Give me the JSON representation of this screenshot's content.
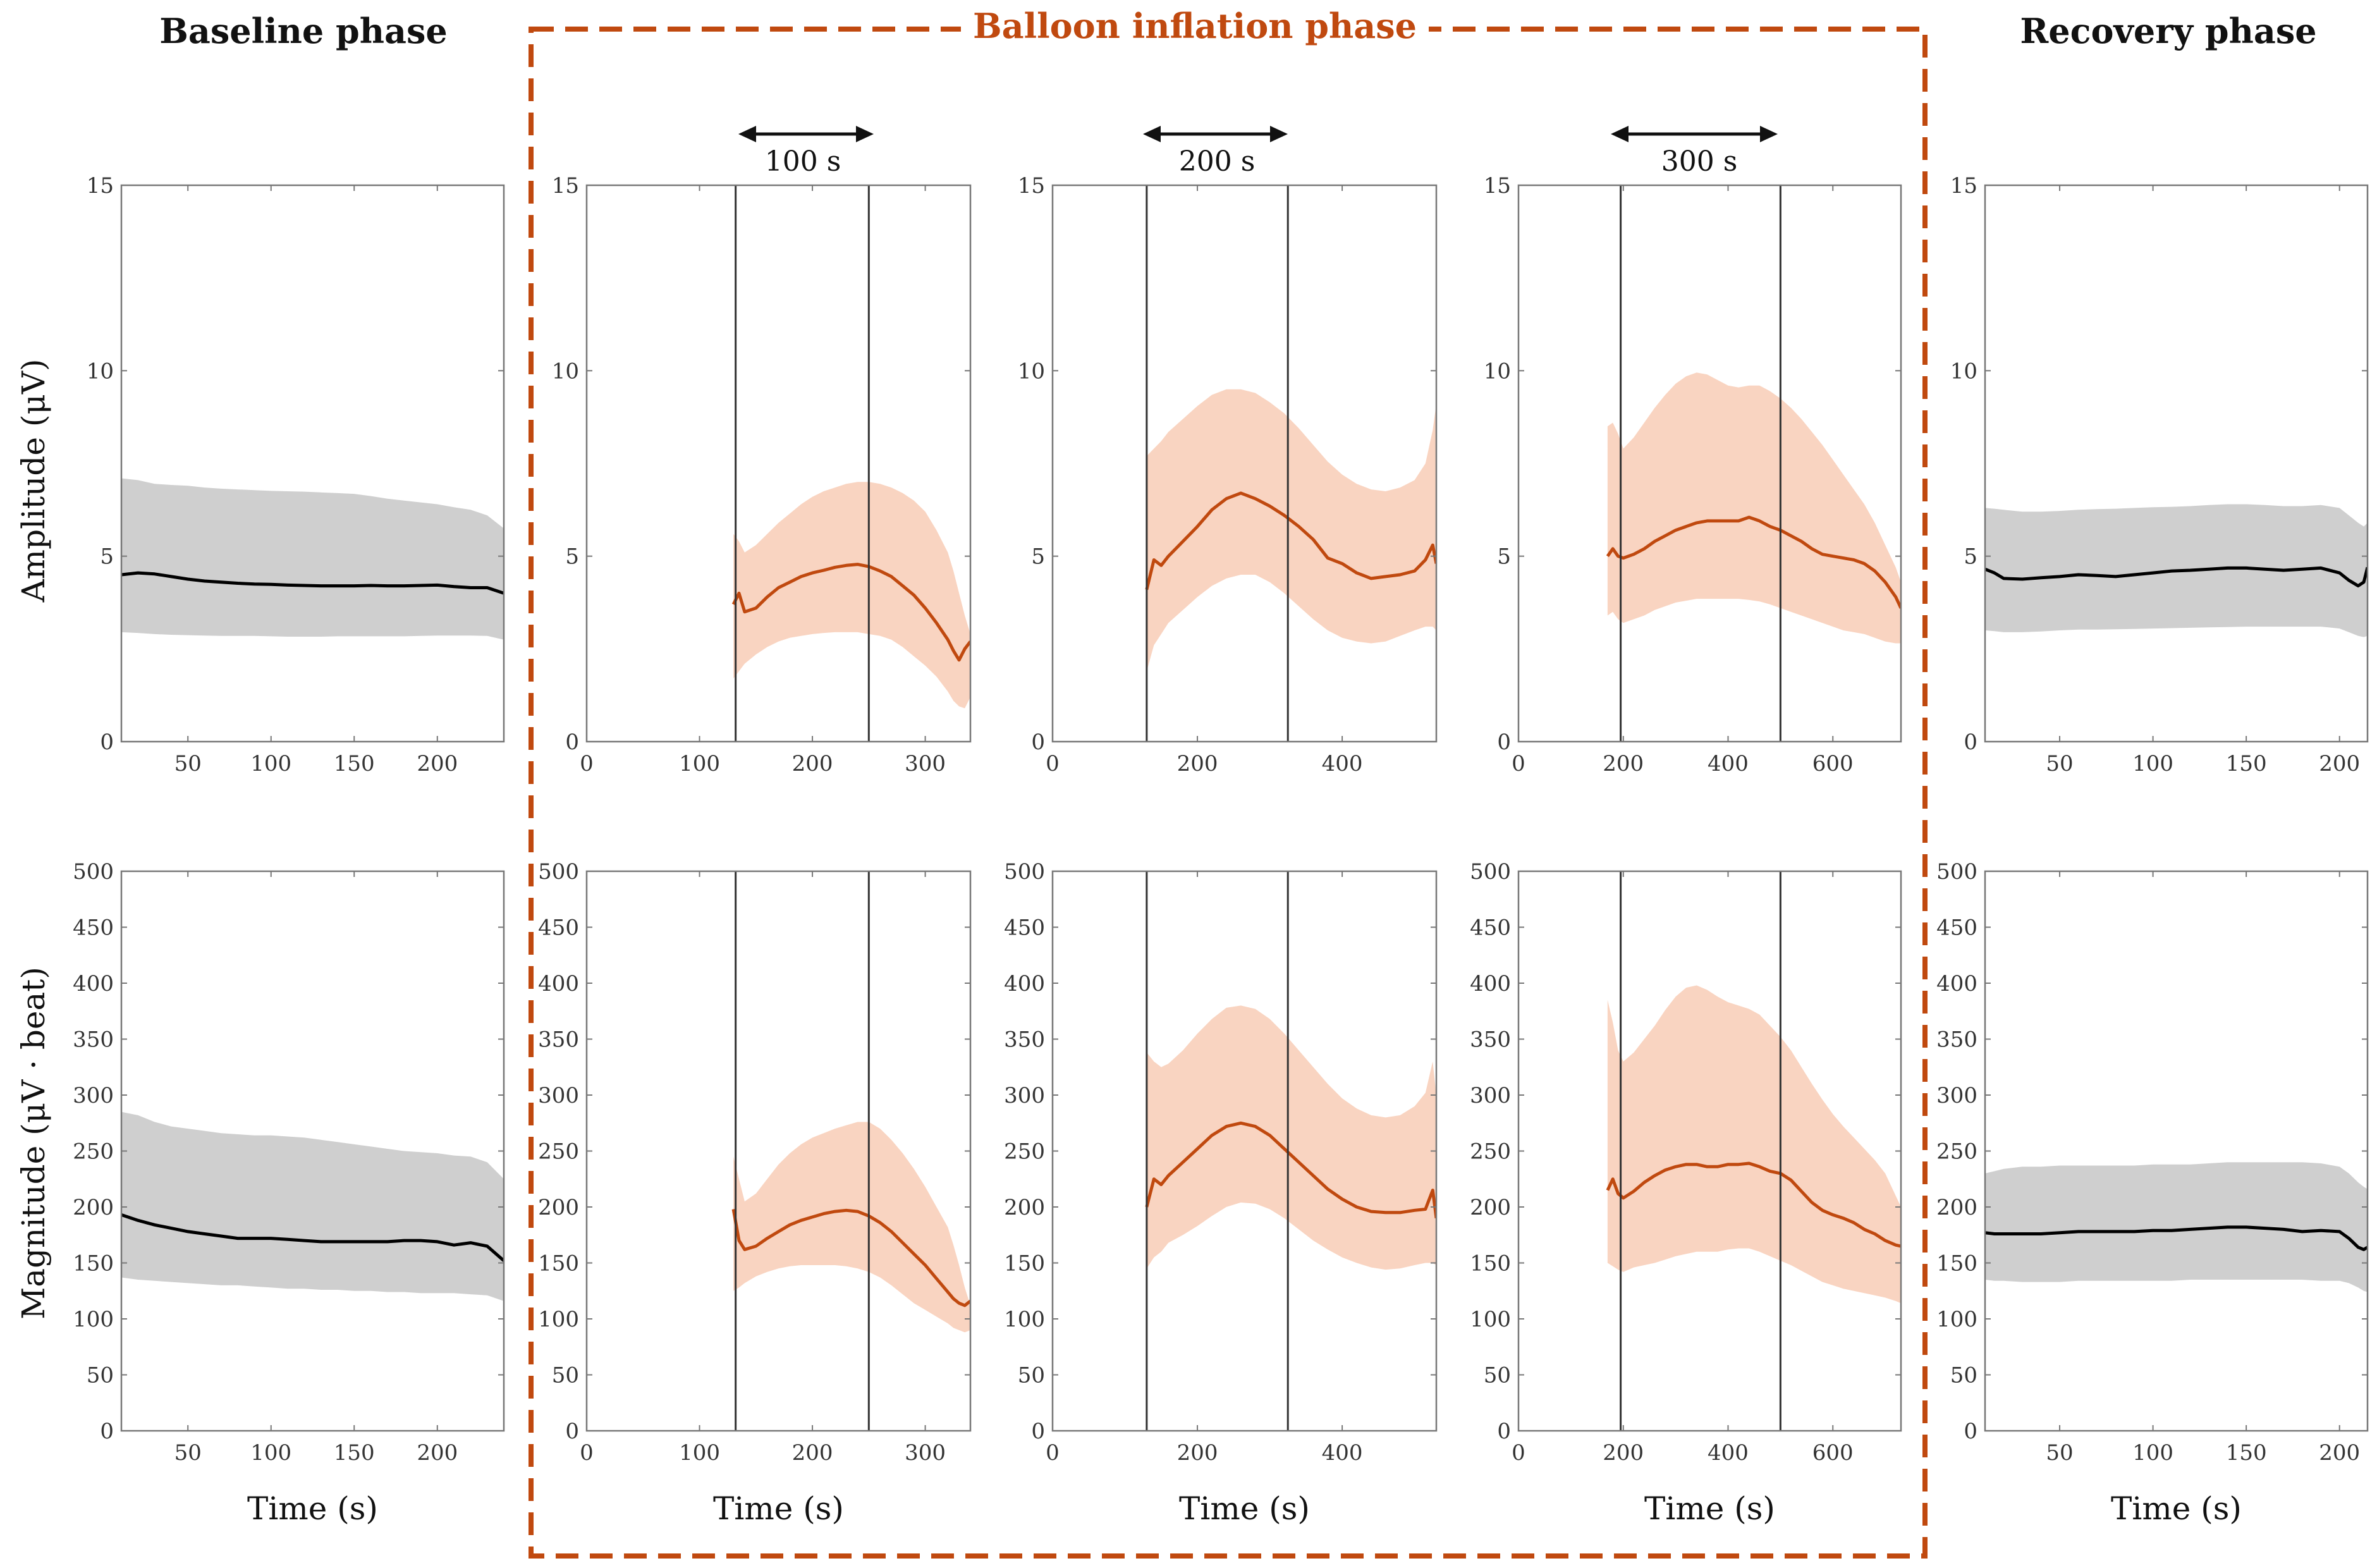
{
  "colors": {
    "accent": "#C0490F",
    "band_orange": "#F9D4C1",
    "band_gray": "#CFCFCF",
    "line_black": "#000000",
    "axis": "#777777",
    "marker": "#333333"
  },
  "titles": {
    "baseline": "Baseline phase",
    "balloon": "Balloon inflation phase",
    "recovery": "Recovery phase"
  },
  "row_labels": {
    "amplitude": "Amplitude (μV)",
    "magnitude": "Magnitude (μV · beat)"
  },
  "durations": [
    "100 s",
    "200 s",
    "300 s"
  ],
  "chart_data": [
    {
      "id": "baseline-amplitude",
      "type": "line",
      "title": "Baseline phase",
      "xlabel": "",
      "ylabel": "Amplitude (μV)",
      "xlim": [
        10,
        240
      ],
      "ylim": [
        0,
        15
      ],
      "xticks": [
        50,
        100,
        150,
        200
      ],
      "yticks": [
        0,
        5,
        10,
        15
      ],
      "tone": "gray",
      "markers": [],
      "x": [
        10,
        20,
        30,
        40,
        50,
        60,
        70,
        80,
        90,
        100,
        110,
        120,
        130,
        140,
        150,
        160,
        170,
        180,
        190,
        200,
        210,
        220,
        230,
        240
      ],
      "y": [
        4.5,
        4.55,
        4.52,
        4.45,
        4.38,
        4.33,
        4.3,
        4.27,
        4.25,
        4.24,
        4.22,
        4.21,
        4.2,
        4.2,
        4.2,
        4.21,
        4.2,
        4.2,
        4.21,
        4.22,
        4.18,
        4.15,
        4.15,
        4.0
      ],
      "upper": [
        7.1,
        7.05,
        6.95,
        6.92,
        6.9,
        6.85,
        6.82,
        6.8,
        6.78,
        6.76,
        6.75,
        6.74,
        6.72,
        6.7,
        6.68,
        6.62,
        6.55,
        6.5,
        6.45,
        6.4,
        6.32,
        6.25,
        6.1,
        5.75
      ],
      "lower": [
        2.95,
        2.93,
        2.9,
        2.88,
        2.87,
        2.86,
        2.85,
        2.85,
        2.85,
        2.84,
        2.83,
        2.83,
        2.83,
        2.84,
        2.84,
        2.84,
        2.84,
        2.84,
        2.85,
        2.86,
        2.86,
        2.86,
        2.85,
        2.75
      ]
    },
    {
      "id": "balloon100-amplitude",
      "type": "line",
      "title": "",
      "xlabel": "",
      "ylabel": "",
      "xlim": [
        0,
        340
      ],
      "ylim": [
        0,
        15
      ],
      "xticks": [
        0,
        100,
        200,
        300
      ],
      "yticks": [
        0,
        5,
        10,
        15
      ],
      "tone": "orange",
      "markers": [
        132,
        250
      ],
      "x": [
        130,
        135,
        140,
        150,
        160,
        170,
        180,
        190,
        200,
        210,
        220,
        230,
        240,
        250,
        260,
        270,
        280,
        290,
        300,
        310,
        320,
        325,
        330,
        335,
        340
      ],
      "y": [
        3.7,
        4.0,
        3.5,
        3.6,
        3.9,
        4.15,
        4.3,
        4.45,
        4.55,
        4.62,
        4.7,
        4.75,
        4.78,
        4.72,
        4.6,
        4.45,
        4.2,
        3.95,
        3.6,
        3.2,
        2.75,
        2.45,
        2.2,
        2.5,
        2.7
      ],
      "upper": [
        5.6,
        5.4,
        5.1,
        5.3,
        5.6,
        5.9,
        6.15,
        6.4,
        6.6,
        6.75,
        6.85,
        6.95,
        7.0,
        7.0,
        6.95,
        6.85,
        6.7,
        6.5,
        6.2,
        5.7,
        5.1,
        4.6,
        4.0,
        3.4,
        2.9
      ],
      "lower": [
        1.7,
        1.9,
        2.1,
        2.35,
        2.55,
        2.7,
        2.8,
        2.85,
        2.9,
        2.93,
        2.95,
        2.95,
        2.95,
        2.9,
        2.85,
        2.75,
        2.55,
        2.3,
        2.05,
        1.75,
        1.35,
        1.1,
        0.95,
        0.9,
        1.2
      ]
    },
    {
      "id": "balloon200-amplitude",
      "type": "line",
      "title": "",
      "xlabel": "",
      "ylabel": "",
      "xlim": [
        0,
        530
      ],
      "ylim": [
        0,
        15
      ],
      "xticks": [
        0,
        200,
        400
      ],
      "yticks": [
        0,
        5,
        10,
        15
      ],
      "tone": "orange",
      "markers": [
        130,
        325
      ],
      "x": [
        130,
        140,
        150,
        160,
        180,
        200,
        220,
        240,
        260,
        280,
        300,
        320,
        340,
        360,
        380,
        400,
        420,
        440,
        460,
        480,
        500,
        515,
        525,
        530
      ],
      "y": [
        4.1,
        4.9,
        4.75,
        5.0,
        5.4,
        5.8,
        6.25,
        6.55,
        6.7,
        6.55,
        6.35,
        6.1,
        5.8,
        5.45,
        4.95,
        4.8,
        4.55,
        4.4,
        4.45,
        4.5,
        4.6,
        4.9,
        5.3,
        4.8
      ],
      "upper": [
        7.7,
        7.9,
        8.1,
        8.35,
        8.7,
        9.05,
        9.35,
        9.5,
        9.5,
        9.4,
        9.15,
        8.85,
        8.45,
        8.0,
        7.55,
        7.2,
        6.95,
        6.8,
        6.75,
        6.85,
        7.05,
        7.5,
        8.4,
        9.1
      ],
      "lower": [
        1.9,
        2.6,
        2.9,
        3.2,
        3.55,
        3.9,
        4.2,
        4.4,
        4.5,
        4.5,
        4.3,
        4.0,
        3.65,
        3.3,
        3.0,
        2.8,
        2.7,
        2.65,
        2.7,
        2.85,
        3.0,
        3.1,
        3.1,
        3.0
      ]
    },
    {
      "id": "balloon300-amplitude",
      "type": "line",
      "title": "",
      "xlabel": "",
      "ylabel": "",
      "xlim": [
        0,
        730
      ],
      "ylim": [
        0,
        15
      ],
      "xticks": [
        0,
        200,
        400,
        600
      ],
      "yticks": [
        0,
        5,
        10,
        15
      ],
      "tone": "orange",
      "markers": [
        195,
        500
      ],
      "x": [
        170,
        180,
        190,
        200,
        220,
        240,
        260,
        280,
        300,
        320,
        340,
        360,
        380,
        400,
        420,
        440,
        460,
        480,
        500,
        520,
        540,
        560,
        580,
        600,
        620,
        640,
        660,
        680,
        700,
        720,
        730
      ],
      "y": [
        5.0,
        5.2,
        5.0,
        4.95,
        5.05,
        5.2,
        5.4,
        5.55,
        5.7,
        5.8,
        5.9,
        5.95,
        5.95,
        5.95,
        5.95,
        6.05,
        5.95,
        5.8,
        5.7,
        5.55,
        5.4,
        5.2,
        5.05,
        5.0,
        4.95,
        4.9,
        4.8,
        4.6,
        4.3,
        3.9,
        3.6
      ],
      "upper": [
        8.5,
        8.6,
        8.3,
        7.9,
        8.2,
        8.6,
        9.0,
        9.35,
        9.65,
        9.85,
        9.95,
        9.9,
        9.75,
        9.6,
        9.55,
        9.6,
        9.6,
        9.45,
        9.25,
        9.0,
        8.7,
        8.35,
        8.0,
        7.6,
        7.2,
        6.8,
        6.4,
        5.9,
        5.3,
        4.7,
        4.3
      ],
      "lower": [
        3.4,
        3.5,
        3.3,
        3.2,
        3.3,
        3.4,
        3.55,
        3.65,
        3.75,
        3.8,
        3.85,
        3.85,
        3.85,
        3.85,
        3.85,
        3.82,
        3.78,
        3.7,
        3.6,
        3.5,
        3.4,
        3.3,
        3.2,
        3.1,
        3.0,
        2.95,
        2.9,
        2.8,
        2.7,
        2.65,
        2.65
      ]
    },
    {
      "id": "recovery-amplitude",
      "type": "line",
      "title": "Recovery phase",
      "xlabel": "",
      "ylabel": "",
      "xlim": [
        10,
        215
      ],
      "ylim": [
        0,
        15
      ],
      "xticks": [
        50,
        100,
        150,
        200
      ],
      "yticks": [
        0,
        5,
        10,
        15
      ],
      "tone": "gray",
      "markers": [],
      "x": [
        10,
        15,
        20,
        30,
        40,
        50,
        60,
        70,
        80,
        90,
        100,
        110,
        120,
        130,
        140,
        150,
        160,
        170,
        180,
        190,
        200,
        205,
        210,
        213,
        215
      ],
      "y": [
        4.65,
        4.55,
        4.4,
        4.38,
        4.42,
        4.45,
        4.5,
        4.48,
        4.45,
        4.5,
        4.55,
        4.6,
        4.62,
        4.65,
        4.68,
        4.68,
        4.65,
        4.62,
        4.65,
        4.68,
        4.55,
        4.35,
        4.2,
        4.3,
        4.7
      ],
      "upper": [
        6.3,
        6.28,
        6.25,
        6.2,
        6.2,
        6.22,
        6.25,
        6.27,
        6.28,
        6.3,
        6.32,
        6.33,
        6.35,
        6.38,
        6.4,
        6.4,
        6.38,
        6.35,
        6.35,
        6.38,
        6.3,
        6.1,
        5.9,
        5.8,
        5.9
      ],
      "lower": [
        3.0,
        2.98,
        2.95,
        2.95,
        2.97,
        3.0,
        3.02,
        3.02,
        3.03,
        3.04,
        3.05,
        3.06,
        3.07,
        3.08,
        3.09,
        3.1,
        3.1,
        3.1,
        3.1,
        3.1,
        3.05,
        2.95,
        2.85,
        2.82,
        2.85
      ]
    },
    {
      "id": "baseline-magnitude",
      "type": "line",
      "title": "",
      "xlabel": "Time (s)",
      "ylabel": "Magnitude (μV · beat)",
      "xlim": [
        10,
        240
      ],
      "ylim": [
        0,
        500
      ],
      "xticks": [
        50,
        100,
        150,
        200
      ],
      "yticks": [
        0,
        50,
        100,
        150,
        200,
        250,
        300,
        350,
        400,
        450,
        500
      ],
      "tone": "gray",
      "markers": [],
      "x": [
        10,
        20,
        30,
        40,
        50,
        60,
        70,
        80,
        90,
        100,
        110,
        120,
        130,
        140,
        150,
        160,
        170,
        180,
        190,
        200,
        210,
        220,
        230,
        240
      ],
      "y": [
        193,
        188,
        184,
        181,
        178,
        176,
        174,
        172,
        172,
        172,
        171,
        170,
        169,
        169,
        169,
        169,
        169,
        170,
        170,
        169,
        166,
        168,
        165,
        152
      ],
      "upper": [
        285,
        282,
        276,
        272,
        270,
        268,
        266,
        265,
        264,
        264,
        263,
        262,
        260,
        258,
        256,
        254,
        252,
        250,
        249,
        248,
        246,
        245,
        240,
        225
      ],
      "lower": [
        137,
        135,
        134,
        133,
        132,
        131,
        130,
        130,
        129,
        128,
        127,
        127,
        126,
        126,
        125,
        125,
        124,
        124,
        123,
        123,
        123,
        122,
        121,
        116
      ]
    },
    {
      "id": "balloon100-magnitude",
      "type": "line",
      "title": "",
      "xlabel": "Time (s)",
      "ylabel": "",
      "xlim": [
        0,
        340
      ],
      "ylim": [
        0,
        500
      ],
      "xticks": [
        0,
        100,
        200,
        300
      ],
      "yticks": [
        0,
        50,
        100,
        150,
        200,
        250,
        300,
        350,
        400,
        450,
        500
      ],
      "tone": "orange",
      "markers": [
        132,
        250
      ],
      "x": [
        130,
        135,
        140,
        150,
        160,
        170,
        180,
        190,
        200,
        210,
        220,
        230,
        240,
        250,
        260,
        270,
        280,
        290,
        300,
        310,
        320,
        325,
        330,
        335,
        340
      ],
      "y": [
        198,
        170,
        162,
        165,
        172,
        178,
        184,
        188,
        191,
        194,
        196,
        197,
        196,
        192,
        186,
        178,
        168,
        158,
        148,
        136,
        124,
        118,
        114,
        112,
        116
      ],
      "upper": [
        245,
        225,
        205,
        212,
        225,
        238,
        248,
        256,
        262,
        266,
        270,
        273,
        276,
        276,
        270,
        260,
        248,
        234,
        218,
        200,
        182,
        166,
        148,
        128,
        112
      ],
      "lower": [
        125,
        128,
        132,
        138,
        142,
        145,
        147,
        148,
        148,
        148,
        148,
        147,
        145,
        142,
        137,
        130,
        122,
        114,
        108,
        102,
        96,
        92,
        90,
        88,
        90
      ]
    },
    {
      "id": "balloon200-magnitude",
      "type": "line",
      "title": "",
      "xlabel": "Time (s)",
      "ylabel": "",
      "xlim": [
        0,
        530
      ],
      "ylim": [
        0,
        500
      ],
      "xticks": [
        0,
        200,
        400
      ],
      "yticks": [
        0,
        50,
        100,
        150,
        200,
        250,
        300,
        350,
        400,
        450,
        500
      ],
      "tone": "orange",
      "markers": [
        130,
        325
      ],
      "x": [
        130,
        140,
        150,
        160,
        180,
        200,
        220,
        240,
        260,
        280,
        300,
        320,
        340,
        360,
        380,
        400,
        420,
        440,
        460,
        480,
        500,
        515,
        525,
        530
      ],
      "y": [
        200,
        225,
        220,
        228,
        240,
        252,
        264,
        272,
        275,
        272,
        264,
        252,
        240,
        228,
        216,
        207,
        200,
        196,
        195,
        195,
        197,
        198,
        215,
        190
      ],
      "upper": [
        338,
        330,
        325,
        328,
        340,
        355,
        368,
        378,
        380,
        377,
        368,
        355,
        340,
        325,
        310,
        297,
        288,
        282,
        280,
        282,
        290,
        302,
        330,
        300
      ],
      "lower": [
        145,
        155,
        160,
        168,
        175,
        183,
        192,
        200,
        204,
        203,
        198,
        190,
        180,
        170,
        162,
        155,
        150,
        146,
        144,
        145,
        148,
        150,
        150,
        148
      ]
    },
    {
      "id": "balloon300-magnitude",
      "type": "line",
      "title": "",
      "xlabel": "Time (s)",
      "ylabel": "",
      "xlim": [
        0,
        730
      ],
      "ylim": [
        0,
        500
      ],
      "xticks": [
        0,
        200,
        400,
        600
      ],
      "yticks": [
        0,
        50,
        100,
        150,
        200,
        250,
        300,
        350,
        400,
        450,
        500
      ],
      "tone": "orange",
      "markers": [
        195,
        500
      ],
      "x": [
        170,
        180,
        190,
        200,
        220,
        240,
        260,
        280,
        300,
        320,
        340,
        360,
        380,
        400,
        420,
        440,
        460,
        480,
        500,
        520,
        540,
        560,
        580,
        600,
        620,
        640,
        660,
        680,
        700,
        720,
        730
      ],
      "y": [
        215,
        225,
        212,
        208,
        214,
        222,
        228,
        233,
        236,
        238,
        238,
        236,
        236,
        238,
        238,
        239,
        236,
        232,
        230,
        224,
        214,
        204,
        197,
        193,
        190,
        186,
        180,
        176,
        170,
        166,
        165
      ],
      "upper": [
        385,
        365,
        340,
        330,
        338,
        350,
        362,
        376,
        388,
        396,
        398,
        394,
        388,
        383,
        380,
        377,
        372,
        362,
        352,
        340,
        325,
        310,
        296,
        283,
        272,
        262,
        252,
        242,
        230,
        210,
        200
      ],
      "lower": [
        150,
        147,
        144,
        142,
        146,
        148,
        150,
        153,
        156,
        158,
        160,
        160,
        160,
        162,
        163,
        163,
        160,
        156,
        152,
        148,
        143,
        138,
        133,
        130,
        127,
        125,
        123,
        121,
        119,
        116,
        114
      ]
    },
    {
      "id": "recovery-magnitude",
      "type": "line",
      "title": "",
      "xlabel": "Time (s)",
      "ylabel": "",
      "xlim": [
        10,
        215
      ],
      "ylim": [
        0,
        500
      ],
      "xticks": [
        50,
        100,
        150,
        200
      ],
      "yticks": [
        0,
        50,
        100,
        150,
        200,
        250,
        300,
        350,
        400,
        450,
        500
      ],
      "tone": "gray",
      "markers": [],
      "x": [
        10,
        15,
        20,
        30,
        40,
        50,
        60,
        70,
        80,
        90,
        100,
        110,
        120,
        130,
        140,
        150,
        160,
        170,
        180,
        190,
        200,
        205,
        210,
        213,
        215
      ],
      "y": [
        177,
        176,
        176,
        176,
        176,
        177,
        178,
        178,
        178,
        178,
        179,
        179,
        180,
        181,
        182,
        182,
        181,
        180,
        178,
        179,
        178,
        172,
        164,
        162,
        164
      ],
      "upper": [
        230,
        232,
        234,
        236,
        236,
        237,
        237,
        237,
        237,
        237,
        238,
        238,
        238,
        239,
        240,
        240,
        240,
        240,
        240,
        239,
        236,
        230,
        222,
        218,
        216
      ],
      "lower": [
        135,
        134,
        134,
        133,
        133,
        133,
        134,
        134,
        134,
        134,
        134,
        134,
        135,
        135,
        135,
        135,
        135,
        135,
        135,
        134,
        134,
        132,
        128,
        125,
        124
      ]
    }
  ]
}
